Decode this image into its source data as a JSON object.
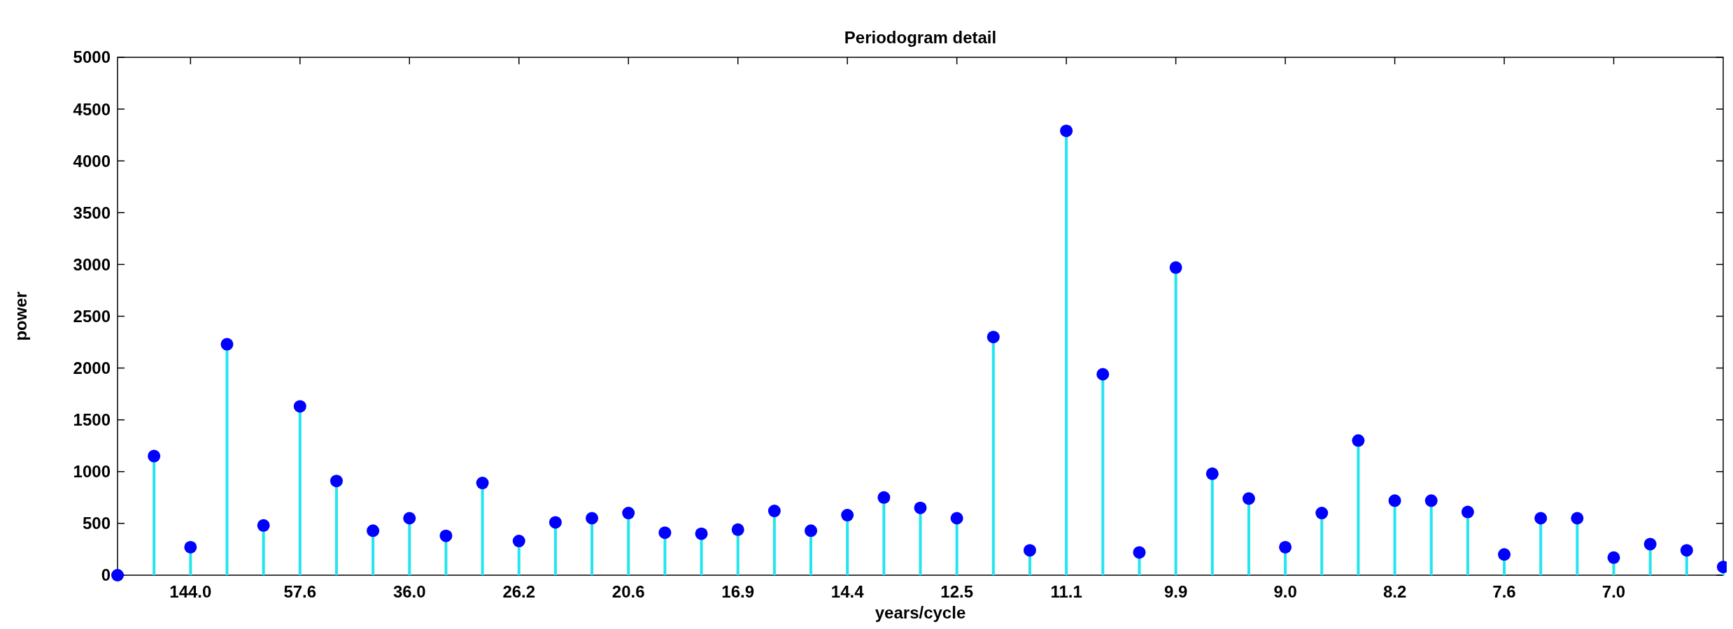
{
  "chart_data": {
    "type": "lollipop",
    "title": "Periodogram detail",
    "xlabel": "years/cycle",
    "ylabel": "power",
    "categories": [
      null,
      null,
      "144.0",
      null,
      null,
      "57.6",
      null,
      null,
      "36.0",
      null,
      null,
      "26.2",
      null,
      null,
      "20.6",
      null,
      null,
      "16.9",
      null,
      null,
      "14.4",
      null,
      null,
      "12.5",
      null,
      null,
      "11.1",
      null,
      null,
      "9.9",
      null,
      null,
      "9.0",
      null,
      null,
      "8.2",
      null,
      null,
      "7.6",
      null,
      null,
      "7.0",
      null,
      null,
      null
    ],
    "series": [
      {
        "color": "#0000ff",
        "values": [
          0,
          1150,
          270,
          2230,
          480,
          1630,
          910,
          430,
          550,
          380,
          890,
          330,
          510,
          550,
          600,
          410,
          400,
          440,
          620,
          430,
          580,
          750,
          650,
          550,
          2300,
          240,
          4290,
          1940,
          220,
          2970,
          980,
          740,
          270,
          600,
          1300,
          720,
          720,
          610,
          200,
          550,
          550,
          170,
          300,
          240,
          80
        ]
      }
    ],
    "ylim": [
      0,
      5000
    ],
    "yticks": [
      0,
      500,
      1000,
      1500,
      2000,
      2500,
      3000,
      3500,
      4000,
      4500,
      5000
    ],
    "marker": "circle"
  }
}
